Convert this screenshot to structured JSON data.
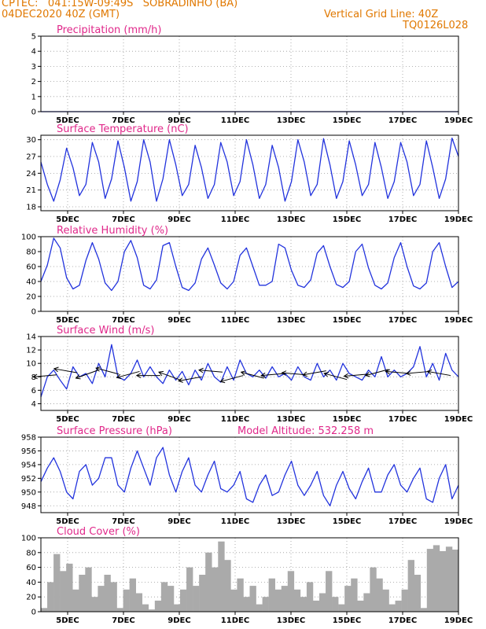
{
  "header": {
    "line1": "CPTEC:   041:15W-09:49S   SOBRADINHO (BA)",
    "line2": "04DEC2020 40Z (GMT)",
    "right1": "Vertical Grid Line: 40Z",
    "right2": "TQ0126L028"
  },
  "x_axis": {
    "ticks": [
      "5DEC",
      "7DEC",
      "9DEC",
      "11DEC",
      "13DEC",
      "15DEC",
      "17DEC",
      "19DEC"
    ]
  },
  "extra_label": "Model Altitude: 532.258 m",
  "colors": {
    "line": "#2233dd",
    "bar": "#aaaaaa",
    "title": "#e0288a",
    "header": "#e07800",
    "wind": "#000000"
  },
  "chart_data": [
    {
      "type": "line",
      "title": "Precipitation (mm/h)",
      "ylim": [
        0,
        5
      ],
      "yticks": [
        0,
        1,
        2,
        3,
        4,
        5
      ],
      "series": [
        {
          "values": [
            0,
            0,
            0,
            0,
            0,
            0,
            0,
            0,
            0,
            0,
            0,
            0,
            0,
            0,
            0,
            0,
            0,
            0,
            0,
            0,
            0,
            0,
            0,
            0,
            0,
            0,
            0,
            0,
            0,
            0,
            0,
            0,
            0,
            0,
            0,
            0,
            0,
            0,
            0,
            0,
            0,
            0,
            0,
            0,
            0,
            0,
            0,
            0,
            0,
            0,
            0,
            0,
            0,
            0,
            0,
            0,
            0,
            0,
            0,
            0,
            0,
            0,
            0,
            0,
            0,
            0
          ]
        }
      ]
    },
    {
      "type": "line",
      "title": "Surface Temperature (nC)",
      "ylim": [
        17.3,
        30.8
      ],
      "yticks": [
        18,
        21,
        24,
        27,
        30
      ],
      "series": [
        {
          "values": [
            26,
            22,
            19,
            22.8,
            28.5,
            25,
            20,
            22,
            29.5,
            26,
            19.5,
            23,
            29.8,
            25,
            19,
            22.5,
            30,
            26,
            19,
            23,
            30,
            25.5,
            20,
            22,
            29,
            25,
            19.5,
            22,
            29.5,
            26,
            20,
            22.5,
            30,
            25.5,
            19.5,
            22,
            29,
            25,
            19,
            22.5,
            30,
            26,
            20,
            22,
            30.2,
            25.5,
            19.5,
            22.5,
            29.8,
            25.5,
            20,
            22,
            29.5,
            25,
            19.5,
            22.5,
            29.5,
            26,
            20,
            22,
            29.8,
            25,
            19.5,
            23,
            30.3,
            27
          ]
        }
      ]
    },
    {
      "type": "line",
      "title": "Relative Humidity (%)",
      "ylim": [
        0,
        100
      ],
      "yticks": [
        0,
        20,
        40,
        60,
        80,
        100
      ],
      "series": [
        {
          "values": [
            40,
            62,
            98,
            85,
            45,
            30,
            35,
            68,
            92,
            70,
            38,
            28,
            40,
            80,
            95,
            72,
            35,
            30,
            42,
            88,
            92,
            60,
            32,
            28,
            38,
            70,
            85,
            62,
            38,
            30,
            40,
            75,
            85,
            60,
            35,
            35,
            40,
            90,
            85,
            55,
            35,
            32,
            42,
            78,
            88,
            60,
            36,
            32,
            40,
            80,
            90,
            58,
            35,
            30,
            38,
            72,
            92,
            60,
            34,
            30,
            38,
            80,
            92,
            60,
            32,
            40
          ]
        }
      ]
    },
    {
      "type": "line",
      "title": "Surface Wind (m/s)",
      "ylim": [
        3,
        14
      ],
      "yticks": [
        4,
        6,
        8,
        10,
        12,
        14
      ],
      "series": [
        {
          "values": [
            5,
            8,
            9,
            7.5,
            6.2,
            9.5,
            8,
            8.5,
            7,
            10,
            8,
            12.8,
            8,
            7.5,
            8.5,
            10.5,
            8,
            9.5,
            8,
            7,
            9,
            7.5,
            8.8,
            6.8,
            9,
            7.5,
            10,
            8,
            7.2,
            9.5,
            7.5,
            10.5,
            8.5,
            8,
            9,
            7.8,
            9.5,
            8,
            8.5,
            7.5,
            9.5,
            8,
            7.5,
            10,
            8,
            9,
            7.5,
            10,
            8.5,
            8,
            7.5,
            9,
            8,
            11,
            8,
            9,
            8,
            8.5,
            9.5,
            12.5,
            8,
            10,
            7.5,
            11.5,
            9,
            8
          ]
        }
      ],
      "wind_arrows": [
        {
          "speed": 8.3,
          "dir_deg": 175
        },
        {
          "speed": 8.6,
          "dir_deg": 190
        },
        {
          "speed": 9.0,
          "dir_deg": 160
        },
        {
          "speed": 8.4,
          "dir_deg": 195
        },
        {
          "speed": 8.8,
          "dir_deg": 165
        },
        {
          "speed": 8.2,
          "dir_deg": 180
        },
        {
          "speed": 7.5,
          "dir_deg": 200
        },
        {
          "speed": 8.0,
          "dir_deg": 170
        },
        {
          "speed": 8.7,
          "dir_deg": 185
        },
        {
          "speed": 8.2,
          "dir_deg": 165
        },
        {
          "speed": 7.8,
          "dir_deg": 195
        },
        {
          "speed": 8.5,
          "dir_deg": 175
        },
        {
          "speed": 8.3,
          "dir_deg": 185
        },
        {
          "speed": 8.9,
          "dir_deg": 170
        },
        {
          "speed": 7.6,
          "dir_deg": 195
        },
        {
          "speed": 8.4,
          "dir_deg": 175
        },
        {
          "speed": 9.1,
          "dir_deg": 165
        },
        {
          "speed": 8.5,
          "dir_deg": 185
        },
        {
          "speed": 8.8,
          "dir_deg": 175
        },
        {
          "speed": 8.2,
          "dir_deg": 190
        }
      ]
    },
    {
      "type": "line",
      "title": "Surface Pressure (hPa)",
      "ylim": [
        947,
        958
      ],
      "yticks": [
        948,
        950,
        952,
        954,
        956,
        958
      ],
      "series": [
        {
          "values": [
            951.5,
            953.5,
            955,
            953,
            950,
            949,
            953,
            954,
            951,
            952,
            955,
            955,
            951,
            950,
            953.5,
            956,
            953.5,
            951,
            955,
            956.5,
            952.5,
            950,
            953,
            955,
            951,
            950,
            952.5,
            954.5,
            950.5,
            950,
            951,
            953,
            949,
            948.5,
            951,
            952.5,
            949.5,
            950,
            952.5,
            954.5,
            951,
            949.5,
            951,
            953,
            949.5,
            948,
            951,
            953,
            950.5,
            949,
            951.5,
            953.5,
            950,
            950,
            952.5,
            954,
            951,
            950,
            952,
            953.5,
            949,
            948.5,
            952,
            954,
            949,
            951
          ]
        }
      ]
    },
    {
      "type": "bar",
      "title": "Cloud Cover (%)",
      "ylim": [
        0,
        100
      ],
      "yticks": [
        0,
        20,
        40,
        60,
        80,
        100
      ],
      "values": [
        5,
        40,
        78,
        55,
        65,
        30,
        50,
        60,
        20,
        35,
        50,
        40,
        5,
        30,
        45,
        25,
        10,
        3,
        15,
        40,
        35,
        10,
        30,
        60,
        35,
        50,
        80,
        60,
        95,
        70,
        30,
        45,
        20,
        35,
        10,
        20,
        45,
        30,
        35,
        55,
        30,
        20,
        40,
        15,
        25,
        55,
        20,
        10,
        35,
        45,
        15,
        25,
        60,
        45,
        30,
        10,
        15,
        30,
        70,
        50,
        5,
        85,
        90,
        82,
        88,
        84
      ]
    }
  ]
}
